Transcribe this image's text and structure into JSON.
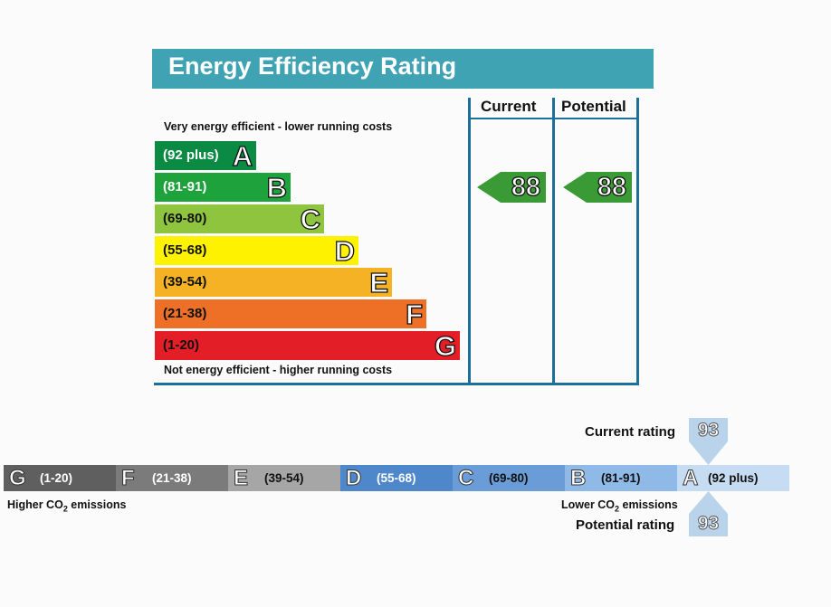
{
  "title": "Energy Efficiency Rating",
  "top_note": "Very energy efficient - lower running costs",
  "bottom_note": "Not energy efficient - higher running costs",
  "columns": {
    "current": "Current",
    "potential": "Potential"
  },
  "colors": {
    "header": "#3fa3b4",
    "frame": "#1d6f9a",
    "arrow": "#3a9a35"
  },
  "chart_data": [
    {
      "type": "bar",
      "title": "Energy Efficiency Rating",
      "bands": [
        {
          "letter": "A",
          "range": "(92 plus)",
          "color": "#0a8a43",
          "dark_text": false
        },
        {
          "letter": "B",
          "range": "(81-91)",
          "color": "#1ea23c",
          "dark_text": false
        },
        {
          "letter": "C",
          "range": "(69-80)",
          "color": "#8fc43f",
          "dark_text": true
        },
        {
          "letter": "D",
          "range": "(55-68)",
          "color": "#fff200",
          "dark_text": true
        },
        {
          "letter": "E",
          "range": "(39-54)",
          "color": "#f4b224",
          "dark_text": true
        },
        {
          "letter": "F",
          "range": "(21-38)",
          "color": "#ee6f26",
          "dark_text": true
        },
        {
          "letter": "G",
          "range": "(1-20)",
          "color": "#e41e26",
          "dark_text": true
        }
      ],
      "current": 88,
      "potential": 88
    },
    {
      "type": "bar",
      "title": "",
      "bands": [
        {
          "letter": "G",
          "range": "(1-20)",
          "color": "#5f5f5f",
          "text_color": "#ffffff"
        },
        {
          "letter": "F",
          "range": "(21-38)",
          "color": "#7b7b7b",
          "text_color": "#ffffff"
        },
        {
          "letter": "E",
          "range": "(39-54)",
          "color": "#a6a6a6",
          "text_color": "#111111"
        },
        {
          "letter": "D",
          "range": "(55-68)",
          "color": "#4e88cb",
          "text_color": "#ffffff"
        },
        {
          "letter": "C",
          "range": "(69-80)",
          "color": "#6a9dd7",
          "text_color": "#111111"
        },
        {
          "letter": "B",
          "range": "(81-91)",
          "color": "#8fb9e7",
          "text_color": "#111111"
        },
        {
          "letter": "A",
          "range": "(92 plus)",
          "color": "#c5dcf2",
          "text_color": "#111111"
        }
      ],
      "current": 93,
      "potential": 93,
      "left_note": {
        "prefix": "Higher CO",
        "sub": "2",
        "suffix": " emissions"
      },
      "right_note": {
        "prefix": "Lower CO",
        "sub": "2",
        "suffix": " emissions"
      },
      "current_label": "Current rating",
      "potential_label": "Potential rating"
    }
  ]
}
